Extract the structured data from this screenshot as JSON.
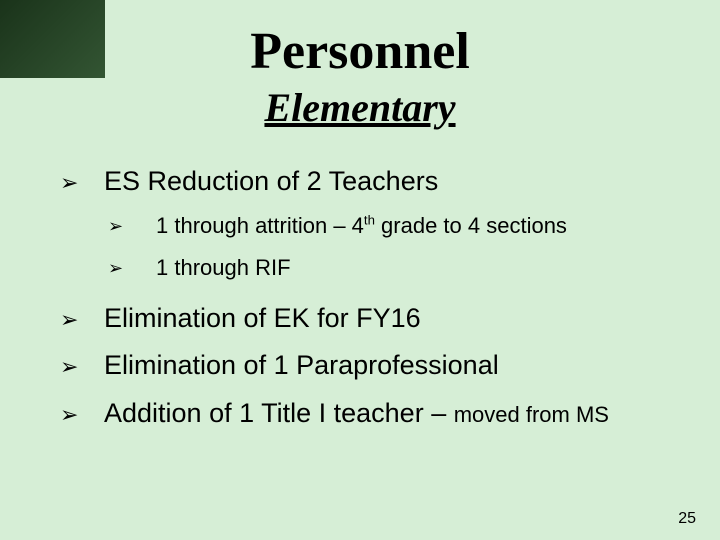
{
  "colors": {
    "slide_background": "#d6eed6",
    "corner_gradient_start": "#1a331a",
    "corner_gradient_end": "#335533",
    "text": "#000000"
  },
  "typography": {
    "title_font": "Times New Roman",
    "title_size_pt": 40,
    "subtitle_size_pt": 30,
    "body_font": "Verdana",
    "level1_size_pt": 21,
    "level2_size_pt": 17
  },
  "title": "Personnel",
  "subtitle": "Elementary",
  "bullets": {
    "level1": {
      "item1": "ES Reduction of 2 Teachers",
      "item1_sub": {
        "a_pre": "1 through attrition – 4",
        "a_sup": "th",
        "a_post": " grade to 4 sections",
        "b": "1 through RIF"
      },
      "item2": "Elimination of EK for FY16",
      "item3": "Elimination of 1 Paraprofessional",
      "item4_main": "Addition of 1 Title I teacher – ",
      "item4_tail": "moved from MS"
    }
  },
  "bullet_glyph": "➢",
  "page_number": "25"
}
